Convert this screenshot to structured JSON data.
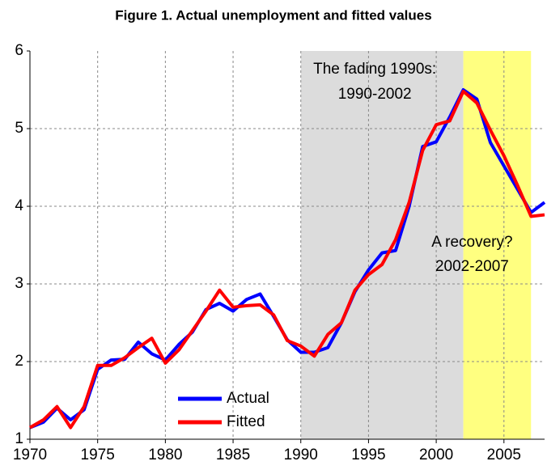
{
  "chart_data": {
    "type": "line",
    "title": "Figure 1. Actual unemployment and fitted values",
    "x": [
      1970,
      1971,
      1972,
      1973,
      1974,
      1975,
      1976,
      1977,
      1978,
      1979,
      1980,
      1981,
      1982,
      1983,
      1984,
      1985,
      1986,
      1987,
      1988,
      1989,
      1990,
      1991,
      1992,
      1993,
      1994,
      1995,
      1996,
      1997,
      1998,
      1999,
      2000,
      2001,
      2002,
      2003,
      2004,
      2005,
      2006,
      2007,
      2008
    ],
    "series": [
      {
        "name": "Actual",
        "color": "#0000ff",
        "values": [
          1.15,
          1.22,
          1.4,
          1.25,
          1.38,
          1.9,
          2.02,
          2.03,
          2.25,
          2.1,
          2.02,
          2.22,
          2.38,
          2.67,
          2.75,
          2.65,
          2.8,
          2.87,
          2.58,
          2.28,
          2.12,
          2.12,
          2.18,
          2.5,
          2.9,
          3.18,
          3.4,
          3.43,
          4.0,
          4.77,
          4.83,
          5.15,
          5.5,
          5.38,
          4.82,
          4.52,
          4.22,
          3.92,
          4.05
        ]
      },
      {
        "name": "Fitted",
        "color": "#ff0000",
        "values": [
          1.15,
          1.25,
          1.42,
          1.15,
          1.42,
          1.95,
          1.95,
          2.05,
          2.18,
          2.3,
          1.98,
          2.15,
          2.4,
          2.65,
          2.92,
          2.7,
          2.72,
          2.73,
          2.6,
          2.27,
          2.2,
          2.07,
          2.35,
          2.5,
          2.92,
          3.12,
          3.25,
          3.57,
          4.05,
          4.72,
          5.05,
          5.1,
          5.48,
          5.33,
          4.98,
          4.65,
          4.27,
          3.87,
          3.89
        ]
      }
    ],
    "shaded_regions": [
      {
        "start": 1990,
        "end": 2002,
        "color": "#dcdcdc",
        "label": [
          "The fading 1990s:",
          "1990-2002"
        ]
      },
      {
        "start": 2002,
        "end": 2007,
        "color": "#ffff80",
        "label": [
          "A recovery?",
          "2002-2007"
        ]
      }
    ],
    "xlim": [
      1970,
      2008
    ],
    "xticks": [
      1970,
      1975,
      1980,
      1985,
      1990,
      1995,
      2000,
      2005
    ],
    "ylim": [
      1,
      6
    ],
    "yticks": [
      1,
      2,
      3,
      4,
      5,
      6
    ],
    "grid": true,
    "legend": "lower-left"
  }
}
